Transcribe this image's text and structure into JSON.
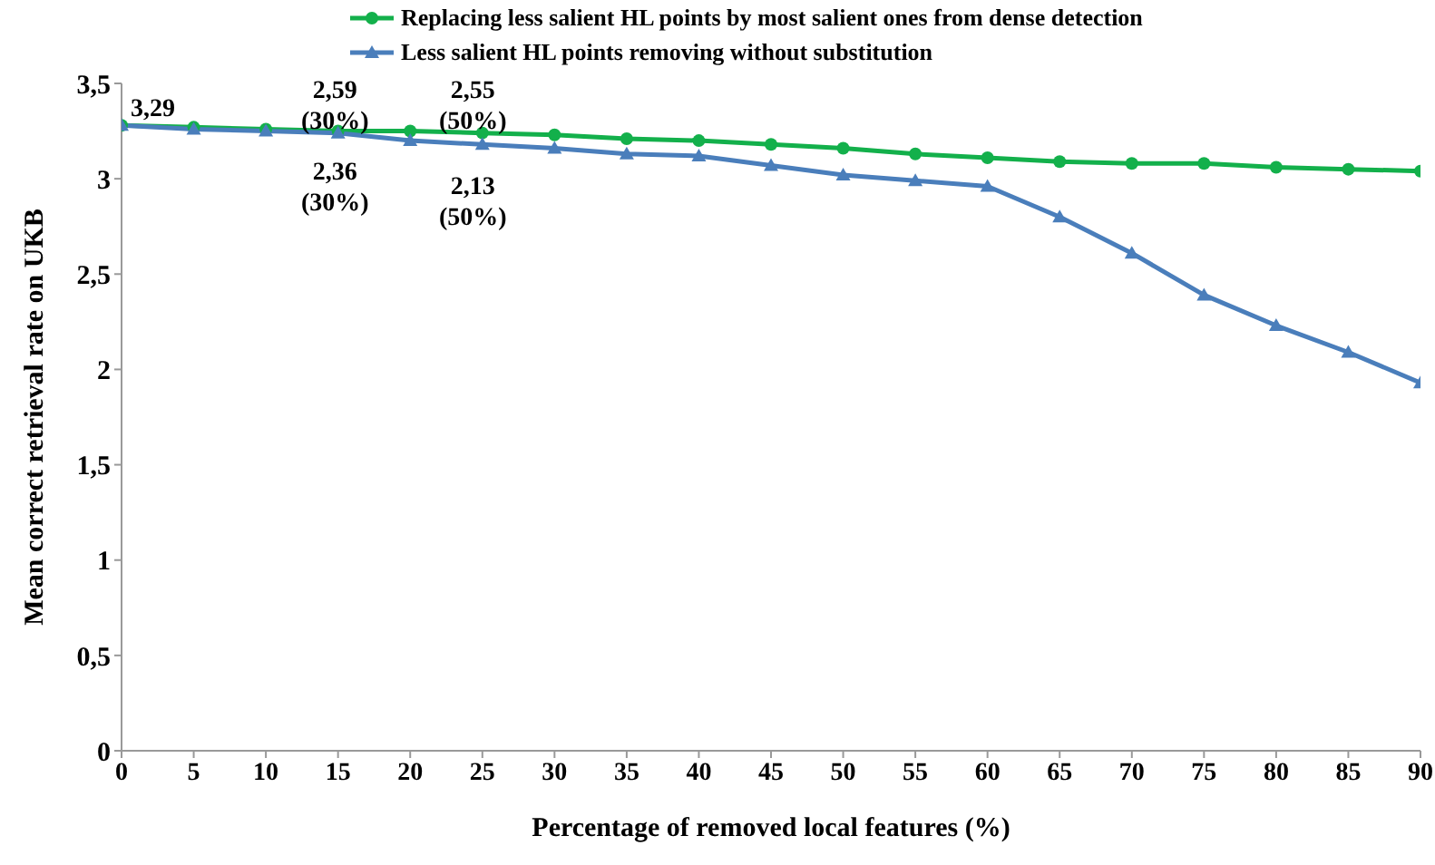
{
  "chart_data": {
    "type": "line",
    "xlabel": "Percentage of removed local features (%)",
    "ylabel": "Mean correct retrieval rate on UKB",
    "x": [
      0,
      5,
      10,
      15,
      20,
      25,
      30,
      35,
      40,
      45,
      50,
      55,
      60,
      65,
      70,
      75,
      80,
      85,
      90
    ],
    "xlim": [
      0,
      90
    ],
    "xticks": [
      0,
      5,
      10,
      15,
      20,
      25,
      30,
      35,
      40,
      45,
      50,
      55,
      60,
      65,
      70,
      75,
      80,
      85,
      90
    ],
    "ylim": [
      0,
      3.5
    ],
    "yticks": [
      0,
      {
        "value": 0.5,
        "label": "0,5"
      },
      1,
      {
        "value": 1.5,
        "label": "1,5"
      },
      2,
      {
        "value": 2.5,
        "label": "2,5"
      },
      3,
      {
        "value": 3.5,
        "label": "3,5"
      }
    ],
    "grid": false,
    "legend": "top",
    "series": [
      {
        "name": "Replacing less salient HL points by most salient ones from dense detection",
        "color": "#13b04b",
        "marker": "circle",
        "values": [
          3.28,
          3.27,
          3.26,
          3.25,
          3.25,
          3.24,
          3.23,
          3.21,
          3.2,
          3.18,
          3.16,
          3.13,
          3.11,
          3.09,
          3.08,
          3.08,
          3.06,
          3.05,
          3.04
        ]
      },
      {
        "name": "Less salient HL points removing without substitution",
        "color": "#4a7ebb",
        "marker": "triangle",
        "values": [
          3.28,
          3.26,
          3.25,
          3.24,
          3.2,
          3.18,
          3.16,
          3.13,
          3.12,
          3.07,
          3.02,
          2.99,
          2.96,
          2.8,
          2.61,
          2.39,
          2.23,
          2.09,
          1.93
        ]
      }
    ],
    "annotations": [
      "3,29",
      "2,59\n(30%)",
      "2,55\n(50%)",
      "2,36\n(30%)",
      "2,13\n(50%)"
    ]
  }
}
